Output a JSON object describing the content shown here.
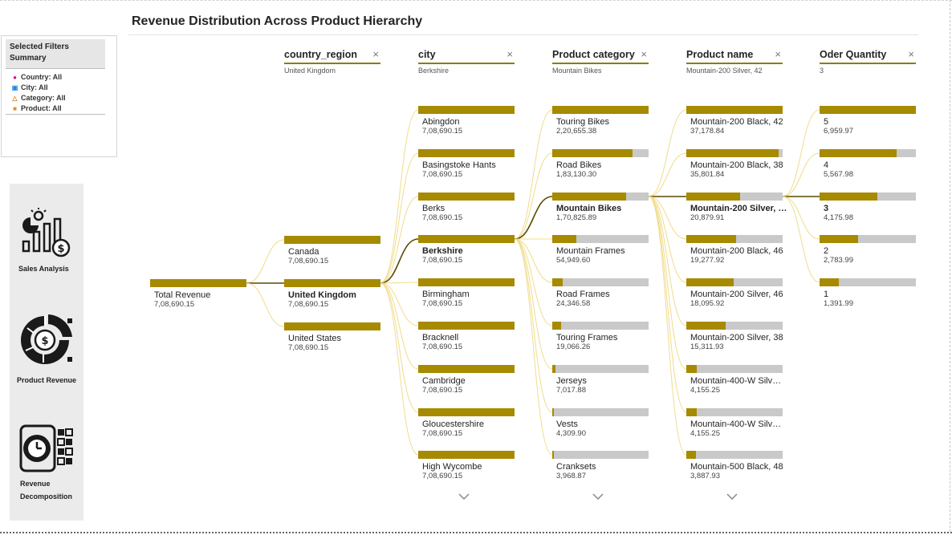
{
  "title": "Revenue Distribution Across Product Hierarchy",
  "filters": {
    "heading": "Selected Filters Summary",
    "items": [
      {
        "icon": "map-pin-icon",
        "label": "Country: All",
        "color": "#e0007a"
      },
      {
        "icon": "city-icon",
        "label": "City: All",
        "color": "#1e88e5"
      },
      {
        "icon": "category-icon",
        "label": "Category: All",
        "color": "#e67e22"
      },
      {
        "icon": "box-icon",
        "label": "Product: All",
        "color": "#e08a1e"
      }
    ]
  },
  "nav": [
    {
      "label": "Sales Analysis",
      "icon": "sales-analysis-icon"
    },
    {
      "label": "Product Revenue",
      "icon": "product-revenue-icon"
    },
    {
      "label": "Revenue Decomposition",
      "icon": "revenue-decomposition-icon"
    }
  ],
  "colors": {
    "bar_fill": "#a68a00",
    "bar_track": "#c9c9c9",
    "link": "#f0dc8c",
    "link_active": "#5a4a00"
  },
  "tree": {
    "root": {
      "label": "Total Revenue",
      "value": "7,08,690.15",
      "fraction": 1
    },
    "columns": [
      {
        "name": "country_region",
        "selected": "United Kingdom",
        "has_more": false,
        "nodes": [
          {
            "label": "Canada",
            "value": "7,08,690.15",
            "fraction": 1
          },
          {
            "label": "United Kingdom",
            "value": "7,08,690.15",
            "fraction": 1,
            "active": true
          },
          {
            "label": "United States",
            "value": "7,08,690.15",
            "fraction": 1
          }
        ]
      },
      {
        "name": "city",
        "selected": "Berkshire",
        "has_more": true,
        "nodes": [
          {
            "label": "Abingdon",
            "value": "7,08,690.15",
            "fraction": 1
          },
          {
            "label": "Basingstoke Hants",
            "value": "7,08,690.15",
            "fraction": 1
          },
          {
            "label": "Berks",
            "value": "7,08,690.15",
            "fraction": 1
          },
          {
            "label": "Berkshire",
            "value": "7,08,690.15",
            "fraction": 1,
            "active": true
          },
          {
            "label": "Birmingham",
            "value": "7,08,690.15",
            "fraction": 1
          },
          {
            "label": "Bracknell",
            "value": "7,08,690.15",
            "fraction": 1
          },
          {
            "label": "Cambridge",
            "value": "7,08,690.15",
            "fraction": 1
          },
          {
            "label": "Gloucestershire",
            "value": "7,08,690.15",
            "fraction": 1
          },
          {
            "label": "High Wycombe",
            "value": "7,08,690.15",
            "fraction": 1
          }
        ]
      },
      {
        "name": "Product category",
        "selected": "Mountain Bikes",
        "has_more": true,
        "nodes": [
          {
            "label": "Touring Bikes",
            "value": "2,20,655.38",
            "fraction": 1
          },
          {
            "label": "Road Bikes",
            "value": "1,83,130.30",
            "fraction": 0.83
          },
          {
            "label": "Mountain Bikes",
            "value": "1,70,825.89",
            "fraction": 0.77,
            "active": true
          },
          {
            "label": "Mountain Frames",
            "value": "54,949.60",
            "fraction": 0.25
          },
          {
            "label": "Road Frames",
            "value": "24,346.58",
            "fraction": 0.11
          },
          {
            "label": "Touring Frames",
            "value": "19,066.26",
            "fraction": 0.09
          },
          {
            "label": "Jerseys",
            "value": "7,017.88",
            "fraction": 0.03
          },
          {
            "label": "Vests",
            "value": "4,309.90",
            "fraction": 0.02
          },
          {
            "label": "Cranksets",
            "value": "3,968.87",
            "fraction": 0.02
          }
        ]
      },
      {
        "name": "Product name",
        "selected": "Mountain-200 Silver, 42",
        "has_more": true,
        "nodes": [
          {
            "label": "Mountain-200 Black, 42",
            "value": "37,178.84",
            "fraction": 1
          },
          {
            "label": "Mountain-200 Black, 38",
            "value": "35,801.84",
            "fraction": 0.96
          },
          {
            "label": "Mountain-200 Silver, …",
            "value": "20,879.91",
            "fraction": 0.56,
            "active": true
          },
          {
            "label": "Mountain-200 Black, 46",
            "value": "19,277.92",
            "fraction": 0.52
          },
          {
            "label": "Mountain-200 Silver, 46",
            "value": "18,095.92",
            "fraction": 0.49
          },
          {
            "label": "Mountain-200 Silver, 38",
            "value": "15,311.93",
            "fraction": 0.41
          },
          {
            "label": "Mountain-400-W Silv…",
            "value": "4,155.25",
            "fraction": 0.11
          },
          {
            "label": "Mountain-400-W Silv…",
            "value": "4,155.25",
            "fraction": 0.11
          },
          {
            "label": "Mountain-500 Black, 48",
            "value": "3,887.93",
            "fraction": 0.1
          }
        ]
      },
      {
        "name": "Oder Quantity",
        "selected": "3",
        "has_more": false,
        "nodes": [
          {
            "label": "5",
            "value": "6,959.97",
            "fraction": 1
          },
          {
            "label": "4",
            "value": "5,567.98",
            "fraction": 0.8
          },
          {
            "label": "3",
            "value": "4,175.98",
            "fraction": 0.6,
            "active": true
          },
          {
            "label": "2",
            "value": "2,783.99",
            "fraction": 0.4
          },
          {
            "label": "1",
            "value": "1,391.99",
            "fraction": 0.2
          }
        ]
      }
    ]
  }
}
